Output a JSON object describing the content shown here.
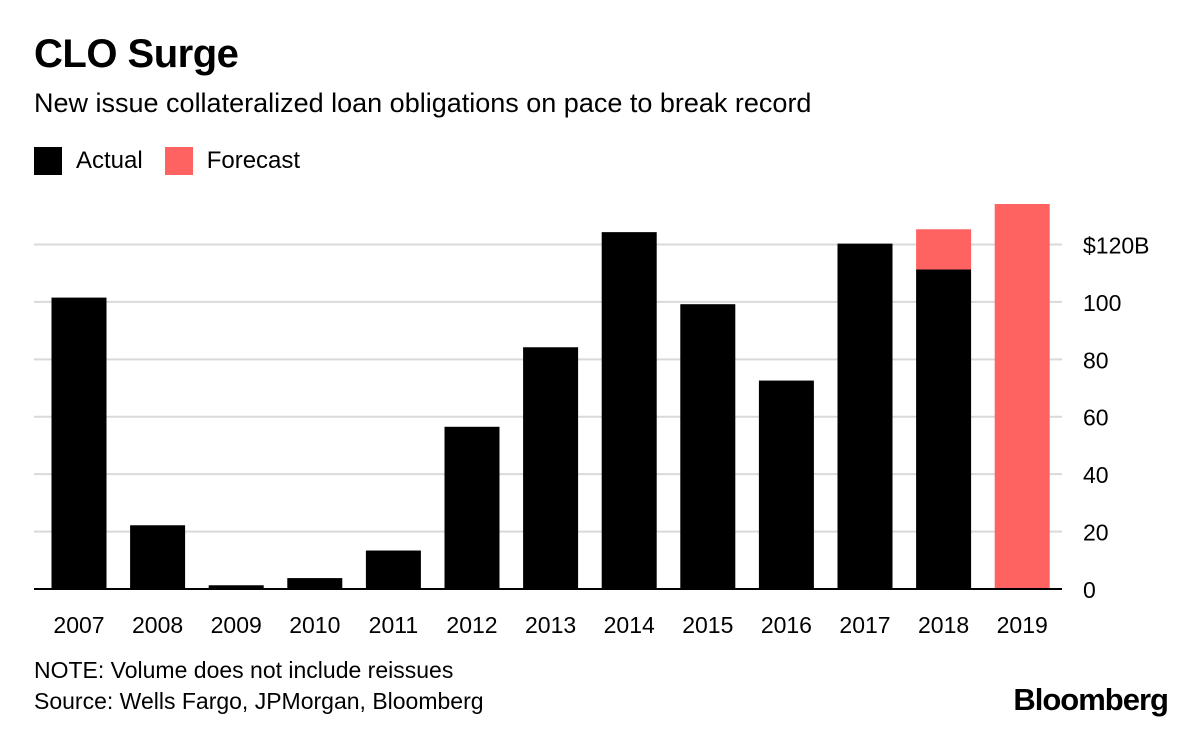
{
  "title": "CLO Surge",
  "subtitle": "New issue collateralized loan obligations on pace to break record",
  "legend": [
    {
      "label": "Actual",
      "color": "#000000"
    },
    {
      "label": "Forecast",
      "color": "#ff6361"
    }
  ],
  "note": "NOTE: Volume does not include reissues",
  "source": "Source: Wells Fargo, JPMorgan, Bloomberg",
  "brand": "Bloomberg",
  "chart_data": {
    "type": "bar",
    "stacked": true,
    "categories": [
      "2007",
      "2008",
      "2009",
      "2010",
      "2011",
      "2012",
      "2013",
      "2014",
      "2015",
      "2016",
      "2017",
      "2018",
      "2019"
    ],
    "series": [
      {
        "name": "Actual",
        "color": "#000000",
        "values": [
          101.5,
          22.2,
          1.3,
          3.8,
          13.4,
          56.5,
          84.2,
          124.3,
          99.2,
          72.6,
          120.3,
          111.3,
          0
        ]
      },
      {
        "name": "Forecast",
        "color": "#ff6361",
        "values": [
          0,
          0,
          0,
          0,
          0,
          0,
          0,
          0,
          0,
          0,
          0,
          14.0,
          134.1
        ]
      }
    ],
    "ylim": [
      0,
      134.1
    ],
    "yticks": [
      0,
      20,
      40,
      60,
      80,
      100,
      120
    ],
    "ytick_labels": [
      "0",
      "20",
      "40",
      "60",
      "80",
      "100",
      "$120B"
    ],
    "grid": true,
    "yaxis_side": "right",
    "legend_position": "top-left"
  }
}
